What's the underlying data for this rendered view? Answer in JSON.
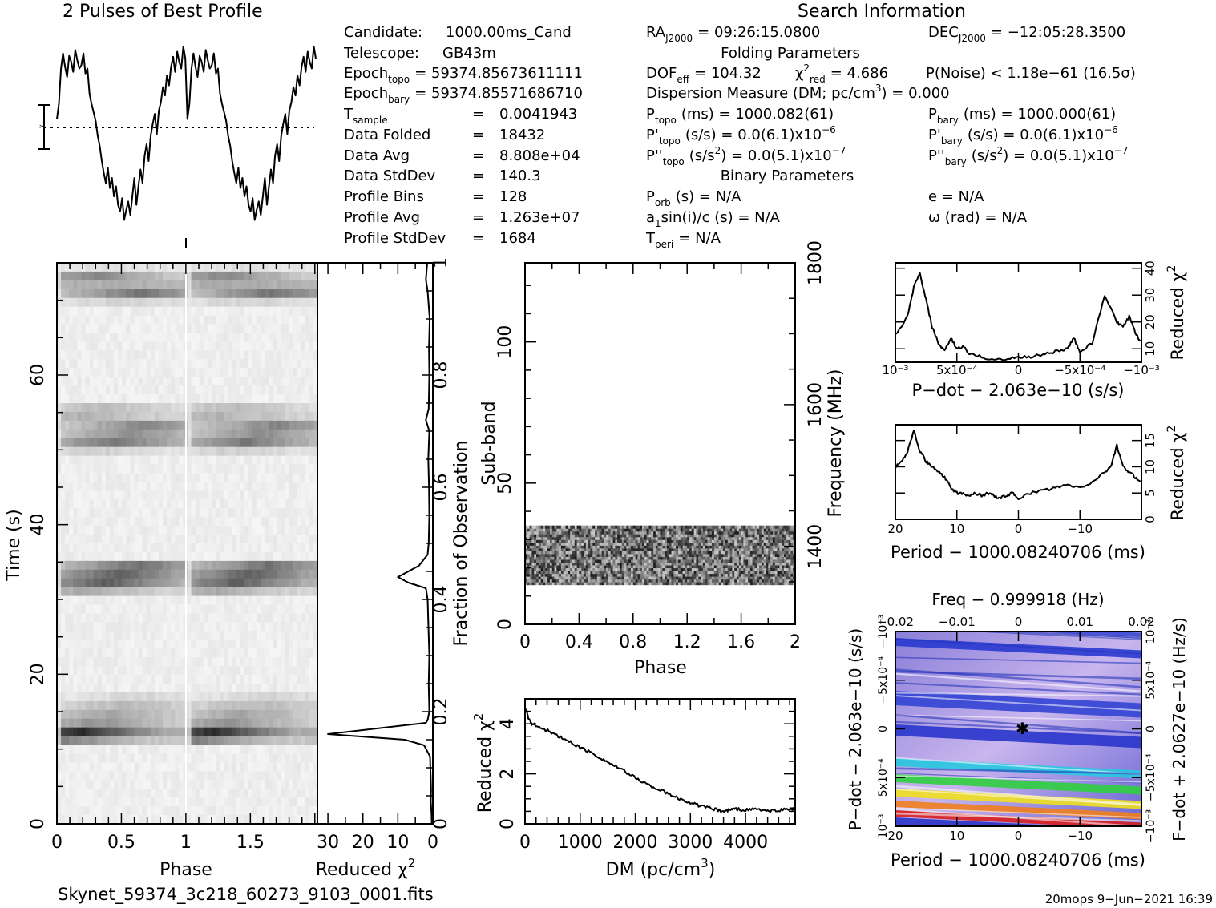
{
  "chart_data": {
    "type": "prepfold-diagnostic",
    "profile": {
      "title": "2 Pulses of Best Profile",
      "y": [
        10,
        28,
        70,
        88,
        72,
        60,
        85,
        78,
        66,
        92,
        80,
        70,
        74,
        88,
        64,
        70,
        40,
        28,
        18,
        8,
        -10,
        -22,
        -40,
        -54,
        -66,
        -48,
        -72,
        -60,
        -82,
        -70,
        -92,
        -100,
        -84,
        -110,
        -98,
        -88,
        -104,
        -82,
        -60,
        -92,
        -70,
        -50,
        -66,
        -34,
        -20,
        -40,
        -10,
        4,
        16,
        -8,
        20,
        30,
        48,
        38,
        62,
        50,
        72,
        84,
        66,
        90,
        78,
        70,
        96,
        82,
        10,
        28,
        70,
        88,
        72,
        60,
        85,
        78,
        66,
        92,
        80,
        70,
        74,
        88,
        64,
        70,
        40,
        28,
        18,
        8,
        -10,
        -22,
        -40,
        -54,
        -66,
        -48,
        -72,
        -60,
        -82,
        -70,
        -92,
        -100,
        -84,
        -110,
        -98,
        -88,
        -104,
        -82,
        -60,
        -92,
        -70,
        -50,
        -66,
        -34,
        -20,
        -40,
        -10,
        4,
        16,
        -8,
        20,
        30,
        48,
        38,
        62,
        50,
        72,
        84,
        66,
        90,
        78,
        70,
        96,
        82
      ]
    },
    "info": {
      "title": "Search Information",
      "candidate": {
        "label": "Candidate:",
        "value": "1000.00ms_Cand"
      },
      "telescope": {
        "label": "Telescope:",
        "value": "GB43m"
      },
      "epoch_topo": {
        "label": "Epoch",
        "sub": "topo",
        "value": "= 59374.85673611111"
      },
      "epoch_bary": {
        "label": "Epoch",
        "sub": "bary",
        "value": "= 59374.85571686710"
      },
      "t_sample": {
        "label": "T",
        "sub": "sample",
        "value": "0.0041943"
      },
      "data_folded": {
        "label": "Data Folded",
        "value": "18432"
      },
      "data_avg": {
        "label": "Data Avg",
        "value": "8.808e+04"
      },
      "data_stddev": {
        "label": "Data StdDev",
        "value": "140.3"
      },
      "profile_bins": {
        "label": "Profile Bins",
        "value": "128"
      },
      "profile_avg": {
        "label": "Profile Avg",
        "value": "1.263e+07"
      },
      "profile_stddev": {
        "label": "Profile StdDev",
        "value": "1684"
      },
      "eq": "=",
      "ra": {
        "label": "RA",
        "sub": "J2000",
        "value": "= 09:26:15.0800"
      },
      "dec": {
        "label": "DEC",
        "sub": "J2000",
        "value": "= −12:05:28.3500"
      },
      "folding_title": "Folding Parameters",
      "dof": {
        "label": "DOF",
        "sub": "eff",
        "value": "= 104.32"
      },
      "chi2": {
        "label": "χ",
        "sup": "2",
        "sub": "red",
        "value": "= 4.686"
      },
      "pnoise": {
        "value": "P(Noise) < 1.18e−61   (16.5σ)"
      },
      "dm_line": {
        "value": "Dispersion Measure (DM; pc/cm",
        "sup": "3",
        "tail": ") = 0.000"
      },
      "ptopo": {
        "label": "P",
        "sub": "topo",
        "value": "(ms) =  1000.082(61)"
      },
      "pbary": {
        "label": "P",
        "sub": "bary",
        "value": "(ms) =  1000.000(61)"
      },
      "pdtopo": {
        "label": "P'",
        "sub": "topo",
        "value": "(s/s) = 0.0(6.1)x10",
        "sup": "−6"
      },
      "pdbary": {
        "label": "P'",
        "sub": "bary",
        "value": "(s/s) = 0.0(6.1)x10",
        "sup": "−6"
      },
      "pddtopo": {
        "label": "P''",
        "sub": "topo",
        "value": "(s/s",
        "sup2": "2",
        "value2": ") = 0.0(5.1)x10",
        "sup": "−7"
      },
      "pddbary": {
        "label": "P''",
        "sub": "bary",
        "value": "(s/s",
        "sup2": "2",
        "value2": ") = 0.0(5.1)x10",
        "sup": "−7"
      },
      "binary_title": "Binary Parameters",
      "porb": {
        "label": "P",
        "sub": "orb",
        "value": "(s) = N/A"
      },
      "e": {
        "value": "e = N/A"
      },
      "asini": {
        "label": "a",
        "sub": "1",
        "value": "sin(i)/c (s) = N/A"
      },
      "omega": {
        "value": "ω (rad) = N/A"
      },
      "tperi": {
        "label": "T",
        "sub": "peri",
        "value": "= N/A"
      }
    },
    "time_phase": {
      "xlabel": "Phase",
      "ylabel": "Time (s)",
      "xticks": [
        "0",
        "0.5",
        "1",
        "1.5"
      ],
      "yticks": [
        "0",
        "20",
        "40",
        "60"
      ],
      "xlim": [
        0,
        2
      ],
      "ylim": [
        0,
        75
      ]
    },
    "time_chi2": {
      "xlabel": "Reduced χ",
      "xlabel_sup": "2",
      "ylabel": "Fraction of Observation",
      "xticks": [
        "30",
        "20",
        "10",
        "0"
      ],
      "yticks": [
        "0",
        "0.2",
        "0.4",
        "0.6",
        "0.8",
        "1"
      ],
      "fraction": [
        0,
        0.02,
        0.04,
        0.06,
        0.08,
        0.1,
        0.12,
        0.14,
        0.15,
        0.16,
        0.18,
        0.185,
        0.2,
        0.25,
        0.3,
        0.36,
        0.4,
        0.42,
        0.43,
        0.44,
        0.46,
        0.48,
        0.5,
        0.55,
        0.6,
        0.65,
        0.7,
        0.72,
        0.74,
        0.8,
        0.85,
        0.9,
        0.95,
        0.97,
        1.0
      ],
      "chi2": [
        0.3,
        0.4,
        0.6,
        0.5,
        0.6,
        0.7,
        0.8,
        2.5,
        8,
        30,
        2,
        1.5,
        1.0,
        1.2,
        1.0,
        1.3,
        1.5,
        2,
        7,
        10,
        4,
        1.5,
        1.2,
        1.0,
        1.1,
        1.3,
        1.0,
        2,
        1.2,
        1.0,
        1.1,
        0.9,
        1.5,
        2,
        1.6
      ]
    },
    "subband": {
      "xlabel": "Phase",
      "ylabel": "Sub-band",
      "y2label": "Frequency (MHz)",
      "xticks": [
        "0",
        "0.4",
        "0.8",
        "1.2",
        "1.6",
        "2"
      ],
      "yticks": [
        "0",
        "50",
        "100"
      ],
      "y2ticks": [
        "1400",
        "1600",
        "1800"
      ],
      "xlim": [
        0,
        2
      ],
      "ylim": [
        0,
        128
      ],
      "band_rows": [
        14,
        35
      ]
    },
    "dm_chi2": {
      "xlabel": "DM (pc/cm",
      "xlabel_sup": "3",
      "xlabel_tail": ")",
      "ylabel": "Reduced χ",
      "ylabel_sup": "2",
      "xticks": [
        "0",
        "1000",
        "2000",
        "3000",
        "4000"
      ],
      "yticks": [
        "0",
        "2",
        "4"
      ],
      "xlim": [
        0,
        4900
      ],
      "ylim": [
        0,
        5
      ],
      "x": [
        0,
        50,
        120,
        200,
        300,
        450,
        600,
        800,
        1000,
        1200,
        1400,
        1600,
        1800,
        2000,
        2200,
        2400,
        2600,
        2800,
        3000,
        3200,
        3400,
        3600,
        3700,
        3800,
        4000,
        4200,
        4400,
        4600,
        4800,
        4900
      ],
      "y": [
        4.7,
        4.3,
        4.0,
        3.95,
        3.8,
        3.7,
        3.5,
        3.3,
        3.05,
        2.85,
        2.6,
        2.35,
        2.1,
        1.85,
        1.6,
        1.4,
        1.2,
        1.0,
        0.85,
        0.7,
        0.6,
        0.5,
        0.55,
        0.6,
        0.55,
        0.6,
        0.5,
        0.55,
        0.6,
        0.6
      ]
    },
    "pdot_chi2": {
      "xlabel": "P−dot − 2.063e−10 (s/s)",
      "ylabel": "Reduced χ",
      "ylabel_sup": "2",
      "xticks": [
        "10⁻³",
        "5x10⁻⁴",
        "0",
        "−5x10⁻⁴",
        "−10⁻³"
      ],
      "yticks": [
        "10",
        "20",
        "30",
        "40"
      ],
      "xlim": [
        0.001,
        -0.001
      ],
      "ylim": [
        5,
        42
      ],
      "x": [
        0.001,
        0.0009,
        0.00085,
        0.0008,
        0.00075,
        0.0007,
        0.00065,
        0.0006,
        0.00055,
        0.0005,
        0.00045,
        0.0004,
        0.0003,
        0.0002,
        0.0001,
        0,
        -0.0001,
        -0.0002,
        -0.0003,
        -0.0004,
        -0.00045,
        -0.0005,
        -0.0006,
        -0.0007,
        -0.0008,
        -0.00085,
        -0.0009,
        -0.00095,
        -0.001
      ],
      "y": [
        15,
        22,
        33,
        38,
        28,
        18,
        12,
        9,
        14,
        10,
        11,
        8,
        7,
        6,
        6,
        7,
        7,
        8,
        9,
        10,
        14,
        9,
        12,
        30,
        20,
        18,
        22,
        16,
        12
      ]
    },
    "period_chi2": {
      "xlabel": "Period − 1000.08240706 (ms)",
      "ylabel": "Reduced χ",
      "ylabel_sup": "2",
      "xticks": [
        "20",
        "10",
        "0",
        "−10"
      ],
      "yticks": [
        "0",
        "5",
        "10",
        "15"
      ],
      "xlim": [
        20,
        -20
      ],
      "ylim": [
        0,
        18
      ],
      "x": [
        20,
        19,
        18,
        17,
        16,
        15,
        14,
        13,
        12,
        11,
        10,
        9,
        8,
        7,
        6,
        5,
        4,
        3,
        2,
        1,
        0,
        -2,
        -4,
        -6,
        -8,
        -10,
        -12,
        -14,
        -15,
        -16,
        -17,
        -18,
        -19,
        -20
      ],
      "y": [
        10,
        11,
        13,
        17,
        13,
        11,
        10,
        9,
        8,
        6,
        5,
        5,
        4.5,
        5,
        4.5,
        5,
        4.5,
        4,
        4.5,
        5,
        4,
        5,
        5.5,
        6,
        6.5,
        6,
        7,
        9,
        10,
        14,
        10,
        9,
        8,
        7
      ]
    },
    "ppdot": {
      "top_label": "Freq − 0.999918 (Hz)",
      "top_ticks": [
        "−0.02",
        "−0.01",
        "0",
        "0.01",
        "0.02"
      ],
      "xlabel": "Period − 1000.08240706 (ms)",
      "xticks": [
        "20",
        "10",
        "0",
        "−10"
      ],
      "ylabel": "P−dot − 2.063e−10 (s/s)",
      "yticks": [
        "10⁻³",
        "5x10⁻⁴",
        "0",
        "−5x10⁻⁴",
        "−10⁻³"
      ],
      "y2label": "F−dot + 2.0627e−10 (Hz/s)",
      "y2ticks": [
        "−10⁻³",
        "−5x10⁻⁴",
        "0",
        "5x10⁻⁴",
        "10⁻³"
      ]
    }
  },
  "footer": {
    "filename": "Skynet_59374_3c218_60273_9103_0001.fits",
    "stamp": "20mops  9−Jun−2021 16:39"
  }
}
